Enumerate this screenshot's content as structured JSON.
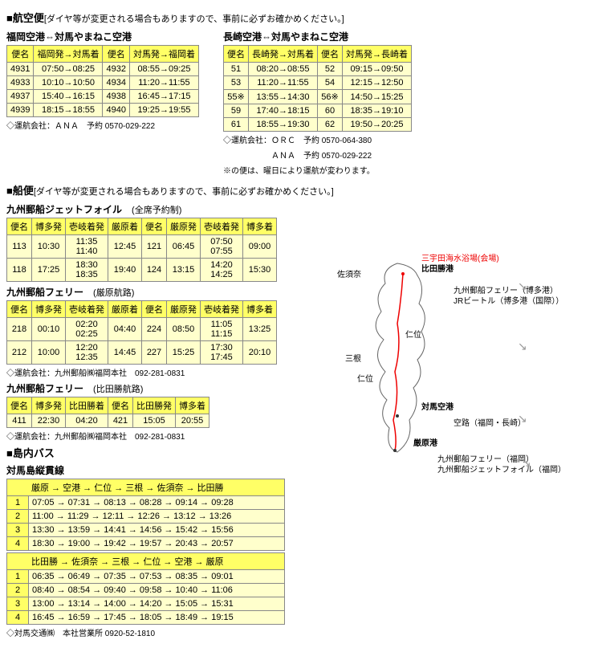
{
  "air": {
    "heading": "■航空便",
    "note": "[ダイヤ等が変更される場合もありますので、事前に必ずお確かめください。]",
    "fukuoka": {
      "title": "福岡空港⇔対馬やまねこ空港",
      "cols": [
        "便名",
        "福岡発→対馬着",
        "便名",
        "対馬発→福岡着"
      ],
      "rows": [
        [
          "4931",
          "07:50→08:25",
          "4932",
          "08:55→09:25"
        ],
        [
          "4933",
          "10:10→10:50",
          "4934",
          "11:20→11:55"
        ],
        [
          "4937",
          "15:40→16:15",
          "4938",
          "16:45→17:15"
        ],
        [
          "4939",
          "18:15→18:55",
          "4940",
          "19:25→19:55"
        ]
      ],
      "foot": "◇運航会社：ＡＮＡ　予約 0570-029-222"
    },
    "nagasaki": {
      "title": "長崎空港⇔対馬やまねこ空港",
      "cols": [
        "便名",
        "長崎発→対馬着",
        "便名",
        "対馬発→長崎着"
      ],
      "rows": [
        [
          "51",
          "08:20→08:55",
          "52",
          "09:15→09:50"
        ],
        [
          "53",
          "11:20→11:55",
          "54",
          "12:15→12:50"
        ],
        [
          "55※",
          "13:55→14:30",
          "56※",
          "14:50→15:25"
        ],
        [
          "59",
          "17:40→18:15",
          "60",
          "18:35→19:10"
        ],
        [
          "61",
          "18:55→19:30",
          "62",
          "19:50→20:25"
        ]
      ],
      "foot1": "◇運航会社：ＯＲＣ　予約 0570-064-380",
      "foot2": "　　　　　　ＡＮＡ　予約 0570-029-222",
      "foot3": "※の便は、曜日により運航が変わります。"
    }
  },
  "ship": {
    "heading": "■船便",
    "note": "[ダイヤ等が変更される場合もありますので、事前に必ずお確かめください。]",
    "jet": {
      "title": "九州郵船ジェットフォイル",
      "sub": "(全席予約制)",
      "cols": [
        "便名",
        "博多発",
        "壱岐着発",
        "厳原着",
        "便名",
        "厳原発",
        "壱岐着発",
        "博多着"
      ],
      "rows": [
        [
          "113",
          "10:30",
          "11:35\n11:40",
          "12:45",
          "121",
          "06:45",
          "07:50\n07:55",
          "09:00"
        ],
        [
          "118",
          "17:25",
          "18:30\n18:35",
          "19:40",
          "124",
          "13:15",
          "14:20\n14:25",
          "15:30"
        ]
      ]
    },
    "ferry1": {
      "title": "九州郵船フェリー",
      "sub": "(厳原航路)",
      "cols": [
        "便名",
        "博多発",
        "壱岐着発",
        "厳原着",
        "便名",
        "厳原発",
        "壱岐着発",
        "博多着"
      ],
      "rows": [
        [
          "218",
          "00:10",
          "02:20\n02:25",
          "04:40",
          "224",
          "08:50",
          "11:05\n11:15",
          "13:25"
        ],
        [
          "212",
          "10:00",
          "12:20\n12:35",
          "14:45",
          "227",
          "15:25",
          "17:30\n17:45",
          "20:10"
        ]
      ],
      "foot": "◇運航会社：九州郵船㈱福岡本社　092-281-0831"
    },
    "ferry2": {
      "title": "九州郵船フェリー",
      "sub": "(比田勝航路)",
      "cols": [
        "便名",
        "博多発",
        "比田勝着",
        "便名",
        "比田勝発",
        "博多着"
      ],
      "rows": [
        [
          "411",
          "22:30",
          "04:20",
          "421",
          "15:05",
          "20:55"
        ]
      ],
      "foot": "◇運航会社：九州郵船㈱福岡本社　092-281-0831"
    }
  },
  "bus": {
    "heading": "■島内バス",
    "title": "対馬島縦貫線",
    "hdr1": "厳原 → 空港 → 仁位 → 三根 → 佐須奈 → 比田勝",
    "rows1": [
      "07:05 → 07:31 → 08:13 → 08:28 → 09:14 → 09:28",
      "11:00 → 11:29 → 12:11 → 12:26 → 13:12 → 13:26",
      "13:30 → 13:59 → 14:41 → 14:56 → 15:42 → 15:56",
      "18:30 → 19:00 → 19:42 → 19:57 → 20:43 → 20:57"
    ],
    "hdr2": "比田勝 → 佐須奈 → 三根 → 仁位 → 空港 → 厳原",
    "rows2": [
      "06:35 → 06:49 → 07:35 → 07:53 → 08:35 → 09:01",
      "08:40 → 08:54 → 09:40 → 09:58 → 10:40 → 11:06",
      "13:00 → 13:14 → 14:00 → 14:20 → 15:05 → 15:31",
      "16:45 → 16:59 → 17:45 → 18:05 → 18:49 → 19:15"
    ],
    "foot": "◇対馬交通㈱　本社営業所 0920-52-1810"
  },
  "map": {
    "beach": "三宇田海水浴場(会場)",
    "hitakatsu_port": "比田勝港",
    "sasuna": "佐須奈",
    "nii": "仁位",
    "mine": "三根",
    "niijiru": "仁位",
    "airport": "対馬空港",
    "izuhara": "厳原港",
    "ferry_hakata": "九州郵船フェリー（博多港）",
    "jr": "JRビートル（博多港（国際））",
    "airroute": "空路（福岡・長崎）",
    "ferry_fukuoka": "九州郵船フェリー（福岡）",
    "jet_fukuoka": "九州郵船ジェットフォイル（福岡）"
  }
}
